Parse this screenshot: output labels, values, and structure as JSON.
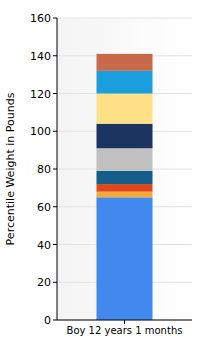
{
  "chart_data": {
    "type": "bar",
    "stacked": true,
    "grid": true,
    "y_label": "Percentile Weight in Pounds",
    "categories": [
      "Boy 12 years 1 months"
    ],
    "series": [
      {
        "color": "#4189ee",
        "values": [
          65
        ]
      },
      {
        "color": "#f4a938",
        "values": [
          3
        ]
      },
      {
        "color": "#e0471a",
        "values": [
          4
        ]
      },
      {
        "color": "#145f8a",
        "values": [
          7
        ]
      },
      {
        "color": "#c0c0c0",
        "values": [
          12
        ]
      },
      {
        "color": "#1b3560",
        "values": [
          13
        ]
      },
      {
        "color": "#fee186",
        "values": [
          16
        ]
      },
      {
        "color": "#1b9edd",
        "values": [
          12
        ]
      },
      {
        "color": "#c8694a",
        "values": [
          9
        ]
      }
    ],
    "ylim": [
      0,
      160
    ],
    "yticks": [
      0,
      20,
      40,
      60,
      80,
      100,
      120,
      140,
      160
    ]
  }
}
